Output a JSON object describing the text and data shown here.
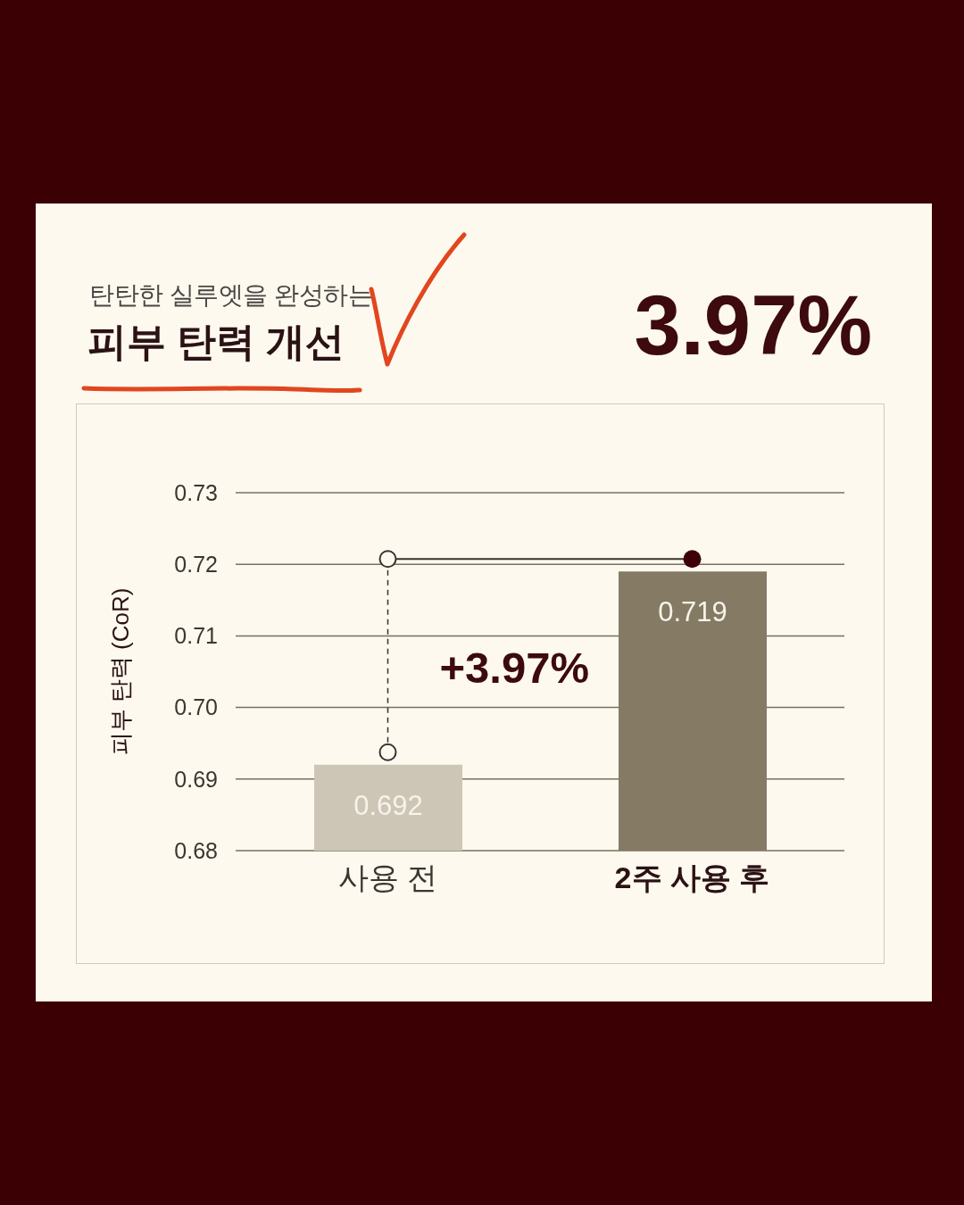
{
  "chart_data": {
    "type": "bar",
    "title": "피부 탄력 개선",
    "subtitle": "탄탄한 실루엣을 완성하는",
    "ylabel": "피부 탄력 (CoR)",
    "categories": [
      "사용 전",
      "2주 사용 후"
    ],
    "values": [
      0.692,
      0.719
    ],
    "colors": [
      "#cdc6b6",
      "#857a64"
    ],
    "ylim": [
      0.68,
      0.73
    ],
    "yticks": [
      0.68,
      0.69,
      {
        "value": 0.7,
        "label": "0.70"
      },
      0.71,
      0.72,
      0.73
    ],
    "grid": "y",
    "data_labels": true,
    "annotations": [
      "3.97%",
      "+3.97%"
    ]
  }
}
